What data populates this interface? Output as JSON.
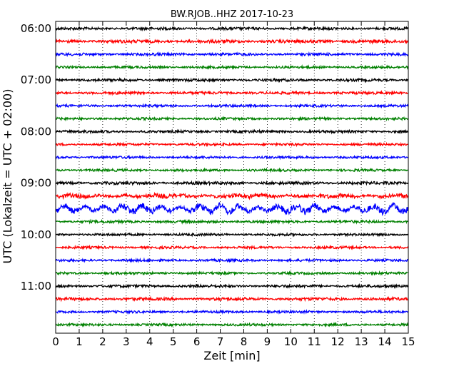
{
  "chart_data": {
    "type": "line",
    "title": "BW.RJOB..HHZ 2017-10-23",
    "xlabel": "Zeit  [min]",
    "ylabel": "UTC (Lokalzeit = UTC + 02:00)",
    "xlim": [
      0,
      15
    ],
    "x_ticks": [
      "0",
      "1",
      "2",
      "3",
      "4",
      "5",
      "6",
      "7",
      "8",
      "9",
      "10",
      "11",
      "12",
      "13",
      "14",
      "15"
    ],
    "y_tick_labels": [
      "06:00",
      "07:00",
      "08:00",
      "09:00",
      "10:00",
      "11:00"
    ],
    "grid": "vertical dotted lines at each minute",
    "trace_interval_min": 15,
    "trace_colors": [
      "#000000",
      "#ff0000",
      "#0000ff",
      "#008000"
    ],
    "traces": [
      {
        "start": "06:00",
        "amplitude": 1.0
      },
      {
        "start": "06:15",
        "amplitude": 1.2
      },
      {
        "start": "06:30",
        "amplitude": 1.0
      },
      {
        "start": "06:45",
        "amplitude": 0.9
      },
      {
        "start": "07:00",
        "amplitude": 1.0
      },
      {
        "start": "07:15",
        "amplitude": 1.0
      },
      {
        "start": "07:30",
        "amplitude": 0.9
      },
      {
        "start": "07:45",
        "amplitude": 0.9
      },
      {
        "start": "08:00",
        "amplitude": 1.0
      },
      {
        "start": "08:15",
        "amplitude": 0.9
      },
      {
        "start": "08:30",
        "amplitude": 0.9
      },
      {
        "start": "08:45",
        "amplitude": 0.9
      },
      {
        "start": "09:00",
        "amplitude": 1.1
      },
      {
        "start": "09:15",
        "amplitude": 1.5
      },
      {
        "start": "09:30",
        "amplitude": 2.4
      },
      {
        "start": "09:45",
        "amplitude": 1.0
      },
      {
        "start": "10:00",
        "amplitude": 0.9
      },
      {
        "start": "10:15",
        "amplitude": 0.9
      },
      {
        "start": "10:30",
        "amplitude": 0.9
      },
      {
        "start": "10:45",
        "amplitude": 0.9
      },
      {
        "start": "11:00",
        "amplitude": 1.0
      },
      {
        "start": "11:15",
        "amplitude": 1.1
      },
      {
        "start": "11:30",
        "amplitude": 0.9
      },
      {
        "start": "11:45",
        "amplitude": 0.9
      }
    ]
  }
}
